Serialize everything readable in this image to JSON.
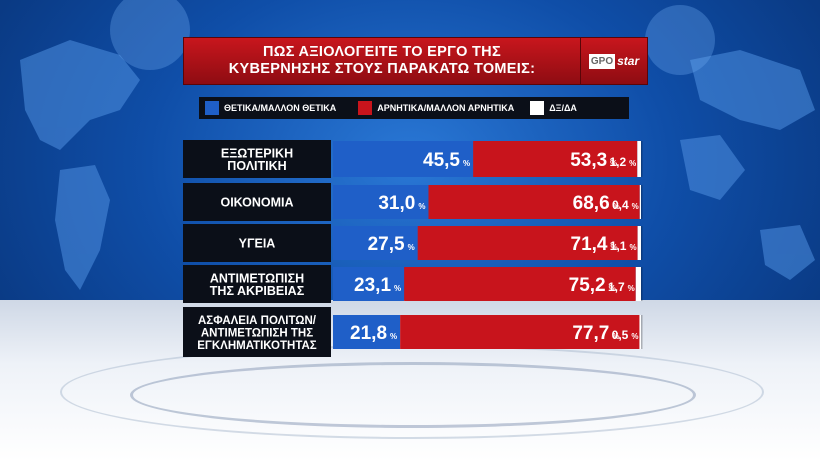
{
  "title": {
    "line1": "ΠΩΣ ΑΞΙΟΛΟΓΕΙΤΕ ΤΟ ΕΡΓΟ ΤΗΣ",
    "line2": "ΚΥΒΕΡΝΗΣΗΣ ΣΤΟΥΣ ΠΑΡΑΚΑΤΩ ΤΟΜΕΙΣ:"
  },
  "logo": {
    "part1": "GPO",
    "part2": "star"
  },
  "colors": {
    "positive": "#1f5fc8",
    "negative": "#c8141c",
    "dk": "#ffffff",
    "label_bg": "#0b0f18",
    "title_bg": "#b01117"
  },
  "chart_data": {
    "type": "bar",
    "stacked": true,
    "orientation": "horizontal",
    "categories": [
      [
        "ΕΞΩΤΕΡΙΚΗ",
        "ΠΟΛΙΤΙΚΗ"
      ],
      [
        "ΟΙΚΟΝΟΜΙΑ"
      ],
      [
        "ΥΓΕΙΑ"
      ],
      [
        "ΑΝΤΙΜΕΤΩΠΙΣΗ",
        "ΤΗΣ ΑΚΡΙΒΕΙΑΣ"
      ],
      [
        "ΑΣΦΑΛΕΙΑ ΠΟΛΙΤΩΝ/",
        "ΑΝΤΙΜΕΤΩΠΙΣΗ ΤΗΣ",
        "ΕΓΚΛΗΜΑΤΙΚΟΤΗΤΑΣ"
      ]
    ],
    "series": [
      {
        "name": "ΘΕΤΙΚΑ/ΜΑΛΛΟΝ ΘΕΤΙΚΑ",
        "color": "#1f5fc8",
        "values": [
          45.5,
          31.0,
          27.5,
          23.1,
          21.8
        ],
        "labels": [
          "45,5",
          "31,0",
          "27,5",
          "23,1",
          "21,8"
        ]
      },
      {
        "name": "ΑΡΝΗΤΙΚΑ/ΜΑΛΛΟΝ ΑΡΝΗΤΙΚΑ",
        "color": "#c8141c",
        "values": [
          53.3,
          68.6,
          71.4,
          75.2,
          77.7
        ],
        "labels": [
          "53,3",
          "68,6",
          "71,4",
          "75,2",
          "77,7"
        ]
      },
      {
        "name": "ΔΞ/ΔΑ",
        "color": "#ffffff",
        "values": [
          1.2,
          0.4,
          1.1,
          1.7,
          0.5
        ],
        "labels": [
          "1,2",
          "0,4",
          "1,1",
          "1,7",
          "0,5"
        ]
      }
    ],
    "unit": "%",
    "xlim": [
      0,
      100
    ]
  }
}
